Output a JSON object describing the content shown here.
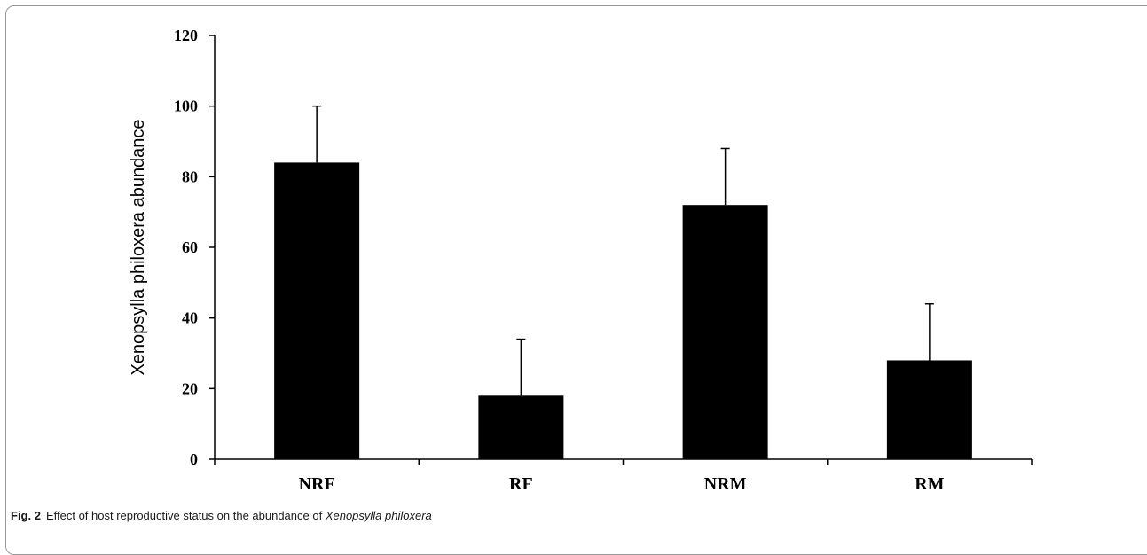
{
  "chart_data": {
    "type": "bar",
    "categories": [
      "NRF",
      "RF",
      "NRM",
      "RM"
    ],
    "values": [
      84,
      18,
      72,
      28
    ],
    "error_bars": [
      16,
      16,
      16,
      16
    ],
    "ylabel": "Xenopsylla philoxera abundance",
    "xlabel": "",
    "ylim": [
      0,
      120
    ],
    "yticks": [
      0,
      20,
      40,
      60,
      80,
      100,
      120
    ],
    "grid": false,
    "bar_color": "#000000"
  },
  "caption": {
    "label": "Fig. 2",
    "text": "Effect of host reproductive status on the abundance of ",
    "species": "Xenopsylla philoxera"
  }
}
